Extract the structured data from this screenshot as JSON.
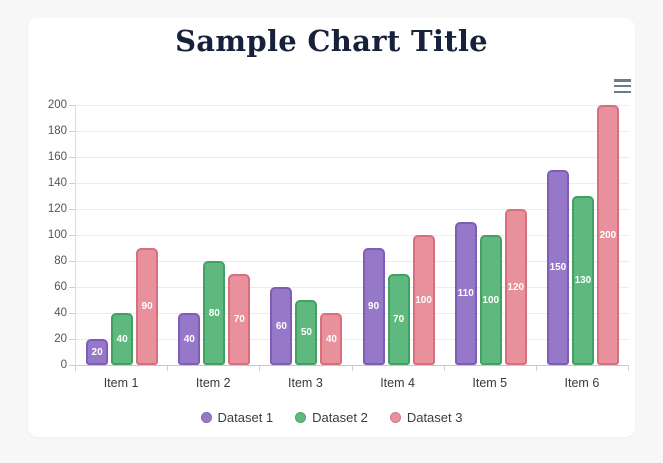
{
  "page": {
    "background": "#f7f7f7",
    "card_background": "#ffffff"
  },
  "header": {
    "menu_icon": "hamburger-menu-icon",
    "menu_icon_color": "#6b7d8d"
  },
  "chart_data": {
    "type": "bar",
    "title": "Sample Chart Title",
    "title_color": "#17213c",
    "categories": [
      "Item 1",
      "Item 2",
      "Item 3",
      "Item 4",
      "Item 5",
      "Item 6"
    ],
    "series": [
      {
        "name": "Dataset 1",
        "fill": "#9678c8",
        "border": "#7e5cb8",
        "values": [
          20,
          40,
          60,
          90,
          110,
          150
        ]
      },
      {
        "name": "Dataset 2",
        "fill": "#5fb87d",
        "border": "#43a064",
        "values": [
          40,
          80,
          50,
          70,
          100,
          130
        ]
      },
      {
        "name": "Dataset 3",
        "fill": "#e8909b",
        "border": "#d6707f",
        "values": [
          90,
          70,
          40,
          100,
          120,
          200
        ]
      }
    ],
    "ylim": [
      0,
      200
    ],
    "y_tick_step": 20,
    "grid": true,
    "legend_position": "bottom",
    "value_labels": true,
    "value_label_color": "#ffffff",
    "axis_tick_color": "#555555",
    "category_label_color": "#3a3a3a",
    "grid_color": "#ebebeb",
    "xlabel": "",
    "ylabel": ""
  }
}
